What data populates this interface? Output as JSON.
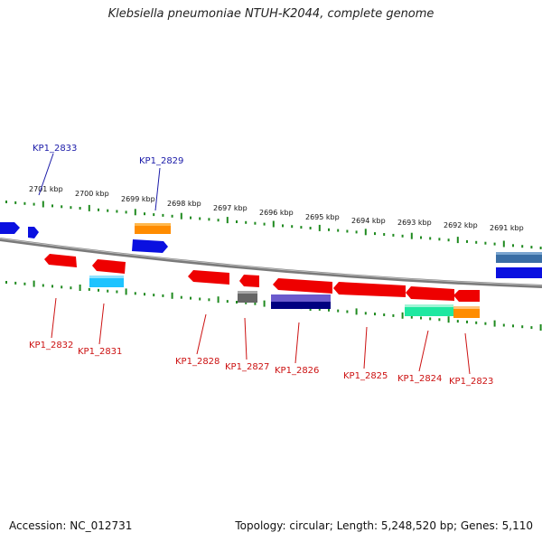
{
  "title": "Klebsiella pneumoniae NTUH-K2044, complete genome",
  "footer": {
    "accession": "Accession: NC_012731",
    "summary": "Topology: circular; Length: 5,248,520 bp; Genes: 5,110"
  },
  "colors": {
    "backbone": "#8c8c8c",
    "ticks": "#1f8a1f",
    "top_labels": "#1a1aa8",
    "bottom_labels": "#cc1111"
  },
  "kbp_labels": [
    "2701 kbp",
    "2700 kbp",
    "2699 kbp",
    "2698 kbp",
    "2697 kbp",
    "2696 kbp",
    "2695 kbp",
    "2694 kbp",
    "2693 kbp",
    "2692 kbp",
    "2691 kbp"
  ],
  "top_labels": [
    "KP1_2833",
    "KP1_2829"
  ],
  "bottom_labels": [
    "KP1_2832",
    "KP1_2831",
    "KP1_2828",
    "KP1_2827",
    "KP1_2826",
    "KP1_2825",
    "KP1_2824",
    "KP1_2823"
  ]
}
